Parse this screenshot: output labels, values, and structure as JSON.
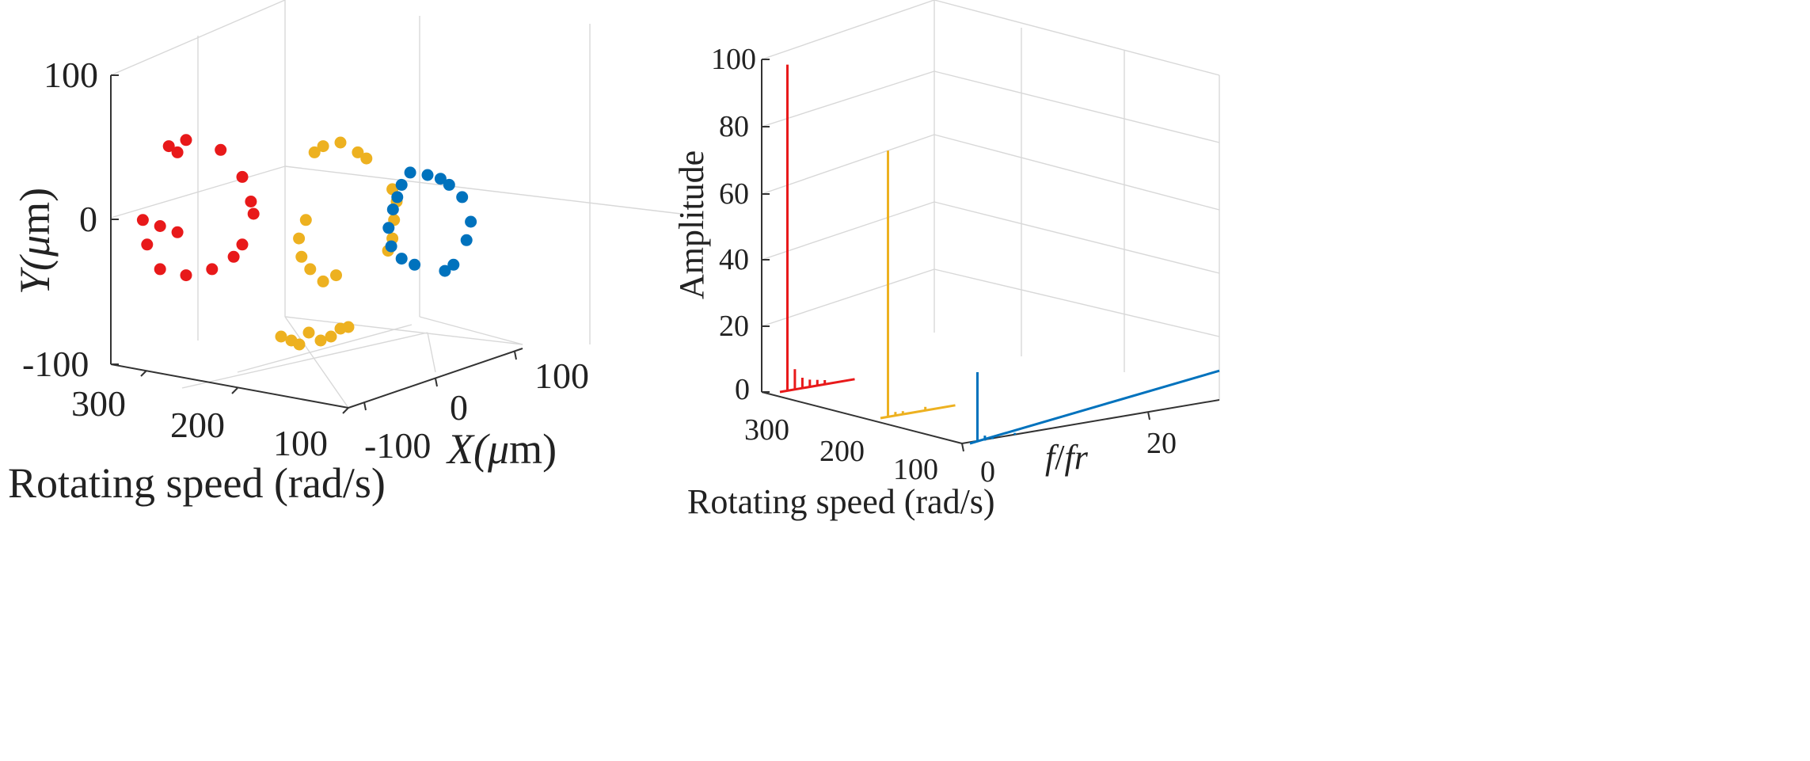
{
  "chart_data": [
    {
      "type": "scatter",
      "subtype": "3d-scatter",
      "title": "",
      "axis_labels": {
        "y": [
          "Y(",
          "μ",
          "m)"
        ],
        "x": [
          "X(",
          "μ",
          "m)"
        ],
        "z": "Rotating speed (rad/s)"
      },
      "y_ticks": [
        "100",
        "0",
        "-100"
      ],
      "x_ticks": [
        "-100",
        "0",
        "100"
      ],
      "z_ticks": [
        "300",
        "200",
        "100"
      ],
      "ylim": [
        -100,
        100
      ],
      "xlim": [
        -100,
        100
      ],
      "zlim": [
        100,
        300
      ],
      "series": [
        {
          "name": "300 rad/s",
          "color": "#e8191a",
          "points": [
            [
              -20,
              55
            ],
            [
              -10,
              50
            ],
            [
              0,
              60
            ],
            [
              40,
              52
            ],
            [
              65,
              30
            ],
            [
              75,
              10
            ],
            [
              78,
              0
            ],
            [
              65,
              -25
            ],
            [
              55,
              -35
            ],
            [
              30,
              -45
            ],
            [
              0,
              -50
            ],
            [
              -30,
              -45
            ],
            [
              -45,
              -25
            ],
            [
              -50,
              -5
            ],
            [
              -30,
              -10
            ],
            [
              -10,
              -15
            ]
          ]
        },
        {
          "name": "200 rad/s",
          "color": "#edb120",
          "points": [
            [
              -30,
              50
            ],
            [
              -20,
              55
            ],
            [
              0,
              58
            ],
            [
              20,
              50
            ],
            [
              30,
              45
            ],
            [
              60,
              20
            ],
            [
              65,
              10
            ],
            [
              62,
              -5
            ],
            [
              60,
              -20
            ],
            [
              55,
              -30
            ],
            [
              -5,
              -50
            ],
            [
              -20,
              -55
            ],
            [
              -35,
              -45
            ],
            [
              -45,
              -35
            ],
            [
              -48,
              -20
            ],
            [
              -40,
              -5
            ]
          ]
        },
        {
          "name": "100 rad/s",
          "color": "#0072bd",
          "points": [
            [
              -30,
              30
            ],
            [
              -20,
              40
            ],
            [
              -35,
              20
            ],
            [
              -40,
              10
            ],
            [
              -45,
              -5
            ],
            [
              -42,
              -20
            ],
            [
              -30,
              -30
            ],
            [
              -15,
              -35
            ],
            [
              20,
              -40
            ],
            [
              30,
              -35
            ],
            [
              45,
              -15
            ],
            [
              50,
              0
            ],
            [
              40,
              20
            ],
            [
              25,
              30
            ],
            [
              15,
              35
            ],
            [
              0,
              38
            ]
          ]
        }
      ]
    },
    {
      "type": "line",
      "subtype": "3d-spectrum-waterfall",
      "title": "",
      "axis_labels": {
        "y": "Amplitude",
        "x": [
          "f",
          "/",
          "fr"
        ],
        "z": "Rotating speed (rad/s)"
      },
      "y_ticks": [
        "100",
        "80",
        "60",
        "40",
        "20",
        "0"
      ],
      "x_ticks": [
        "0",
        "20"
      ],
      "z_ticks": [
        "300",
        "200",
        "100"
      ],
      "ylim": [
        0,
        100
      ],
      "xlim": [
        0,
        30
      ],
      "zlim": [
        100,
        300
      ],
      "series": [
        {
          "name": "300 rad/s",
          "color": "#e8191a",
          "peaks": [
            [
              1,
              98
            ],
            [
              2,
              6
            ],
            [
              3,
              3
            ],
            [
              4,
              2
            ],
            [
              5,
              1.5
            ],
            [
              6,
              1
            ]
          ]
        },
        {
          "name": "200 rad/s",
          "color": "#edb120",
          "peaks": [
            [
              1,
              80
            ],
            [
              2,
              1
            ],
            [
              3,
              0.8
            ],
            [
              6,
              0.8
            ]
          ]
        },
        {
          "name": "100 rad/s",
          "color": "#0072bd",
          "peaks": [
            [
              1,
              21
            ],
            [
              2,
              1.5
            ],
            [
              3,
              0.8
            ],
            [
              6,
              0.6
            ]
          ]
        }
      ]
    }
  ]
}
